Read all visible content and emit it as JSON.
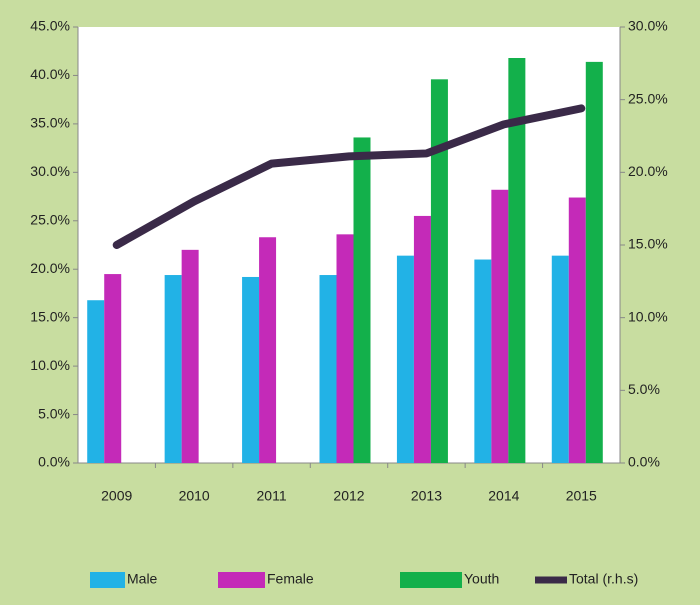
{
  "chart_data": {
    "type": "bar_line",
    "categories": [
      "2009",
      "2010",
      "2011",
      "2012",
      "2013",
      "2014",
      "2015"
    ],
    "series": [
      {
        "name": "Male",
        "color": "#22b2e6",
        "values": [
          16.8,
          19.4,
          19.2,
          19.4,
          21.4,
          21.0,
          21.4
        ]
      },
      {
        "name": "Female",
        "color": "#c42ab8",
        "values": [
          19.5,
          22.0,
          23.3,
          23.6,
          25.5,
          28.2,
          27.4
        ]
      },
      {
        "name": "Youth",
        "color": "#13b04b",
        "values": [
          null,
          null,
          null,
          33.6,
          39.6,
          41.8,
          41.4
        ]
      },
      {
        "name": "Total (r.h.s)",
        "color": "#3a2a48",
        "axis": "y2",
        "type": "line",
        "values": [
          15.0,
          18.0,
          20.6,
          21.1,
          21.3,
          23.3,
          24.4
        ]
      }
    ],
    "ylim": [
      0,
      45
    ],
    "yticks": [
      {
        "value": 0,
        "label": "0.0%"
      },
      {
        "value": 5,
        "label": "5.0%"
      },
      {
        "value": 10,
        "label": "10.0%"
      },
      {
        "value": 15,
        "label": "15.0%"
      },
      {
        "value": 20,
        "label": "20.0%"
      },
      {
        "value": 25,
        "label": "25.0%"
      },
      {
        "value": 30,
        "label": "30.0%"
      },
      {
        "value": 35,
        "label": "35.0%"
      },
      {
        "value": 40,
        "label": "40.0%"
      },
      {
        "value": 45,
        "label": "45.0%"
      }
    ],
    "y2lim": [
      0,
      30
    ],
    "y2ticks": [
      {
        "value": 0,
        "label": "0.0%"
      },
      {
        "value": 5,
        "label": "5.0%"
      },
      {
        "value": 10,
        "label": "10.0%"
      },
      {
        "value": 15,
        "label": "15.0%"
      },
      {
        "value": 20,
        "label": "20.0%"
      },
      {
        "value": 25,
        "label": "25.0%"
      },
      {
        "value": 30,
        "label": "30.0%"
      }
    ]
  }
}
